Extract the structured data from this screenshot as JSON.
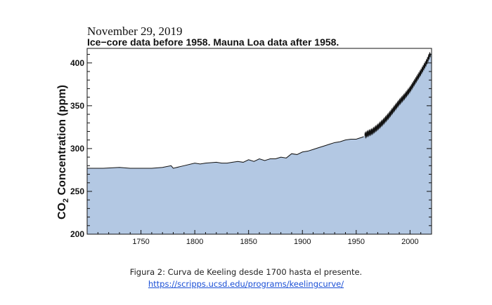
{
  "date_text": "November 29, 2019",
  "caption": {
    "text": "Figura 2: Curva de Keeling desde 1700 hasta el presente.",
    "url": "https://scripps.ucsd.edu/programs/keelingcurve/"
  },
  "colors": {
    "fill": "#b3c8e3",
    "line": "#111111"
  },
  "chart_data": {
    "type": "area",
    "title": "Ice−core data before 1958. Mauna Loa data after 1958.",
    "xlabel": "",
    "ylabel_main": "CO",
    "ylabel_sub": "2",
    "ylabel_rest": " Concentration (ppm)",
    "xlim": [
      1700,
      2020
    ],
    "ylim": [
      200,
      417
    ],
    "xticks": [
      1750,
      1800,
      1850,
      1900,
      1950,
      2000
    ],
    "xtick_labels": [
      "1750",
      "1800",
      "1850",
      "1900",
      "1950",
      "2000"
    ],
    "yticks": [
      200,
      250,
      300,
      350,
      400
    ],
    "ytick_labels": [
      "200",
      "250",
      "300",
      "350",
      "400"
    ],
    "series": [
      {
        "name": "Ice-core",
        "x": [
          1700,
          1715,
          1730,
          1740,
          1750,
          1760,
          1770,
          1778,
          1780,
          1790,
          1800,
          1805,
          1810,
          1820,
          1825,
          1830,
          1835,
          1840,
          1845,
          1850,
          1855,
          1860,
          1865,
          1870,
          1875,
          1880,
          1885,
          1890,
          1895,
          1900,
          1905,
          1910,
          1915,
          1920,
          1925,
          1930,
          1935,
          1940,
          1945,
          1950,
          1955,
          1957
        ],
        "values": [
          277,
          277,
          278,
          277,
          277,
          277,
          278,
          280,
          277,
          280,
          283,
          282,
          283,
          284,
          283,
          283,
          284,
          285,
          284,
          287,
          285,
          288,
          286,
          288,
          288,
          290,
          289,
          294,
          293,
          296,
          297,
          299,
          301,
          303,
          305,
          307,
          308,
          310,
          311,
          311,
          313,
          314
        ]
      },
      {
        "name": "Mauna Loa",
        "x": [
          1958,
          1960,
          1965,
          1970,
          1975,
          1980,
          1985,
          1990,
          1995,
          2000,
          2005,
          2010,
          2015,
          2019
        ],
        "values": [
          315,
          317,
          320,
          325,
          331,
          338,
          346,
          354,
          361,
          369,
          379,
          389,
          400,
          411
        ]
      }
    ]
  }
}
